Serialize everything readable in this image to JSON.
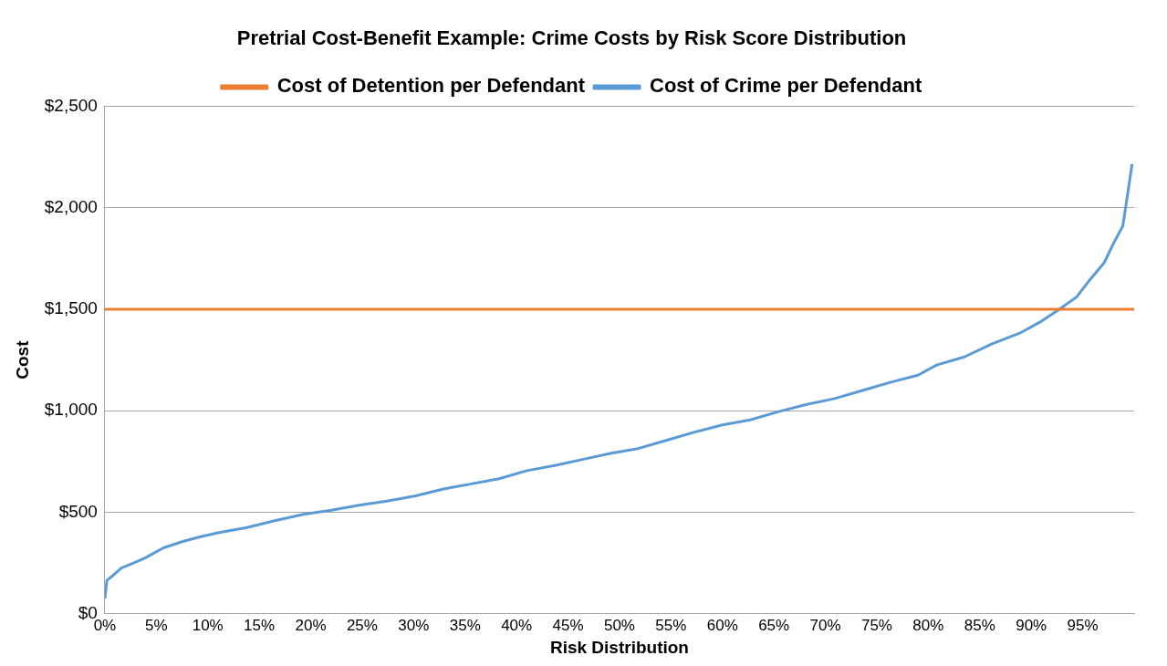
{
  "chart_data": {
    "type": "line",
    "title": "Pretrial Cost-Benefit Example: Crime Costs by Risk Score Distribution",
    "xlabel": "Risk Distribution",
    "ylabel": "Cost",
    "xlim": [
      0,
      100
    ],
    "xticks": [
      {
        "value": 0,
        "label": "0%"
      },
      {
        "value": 5,
        "label": "5%"
      },
      {
        "value": 10,
        "label": "10%"
      },
      {
        "value": 15,
        "label": "15%"
      },
      {
        "value": 20,
        "label": "20%"
      },
      {
        "value": 25,
        "label": "25%"
      },
      {
        "value": 30,
        "label": "30%"
      },
      {
        "value": 35,
        "label": "35%"
      },
      {
        "value": 40,
        "label": "40%"
      },
      {
        "value": 45,
        "label": "45%"
      },
      {
        "value": 50,
        "label": "50%"
      },
      {
        "value": 55,
        "label": "55%"
      },
      {
        "value": 60,
        "label": "60%"
      },
      {
        "value": 65,
        "label": "65%"
      },
      {
        "value": 70,
        "label": "70%"
      },
      {
        "value": 75,
        "label": "75%"
      },
      {
        "value": 80,
        "label": "80%"
      },
      {
        "value": 85,
        "label": "85%"
      },
      {
        "value": 90,
        "label": "90%"
      },
      {
        "value": 95,
        "label": "95%"
      }
    ],
    "ylim": [
      0,
      2500
    ],
    "yticks": [
      {
        "value": 0,
        "label": "$0"
      },
      {
        "value": 500,
        "label": "$500"
      },
      {
        "value": 1000,
        "label": "$1,000"
      },
      {
        "value": 1500,
        "label": "$1,500"
      },
      {
        "value": 2000,
        "label": "$2,000"
      },
      {
        "value": 2500,
        "label": "$2,500"
      }
    ],
    "grid": "y",
    "legend": "top",
    "marker": "none",
    "line_style": "solid",
    "series": [
      {
        "name": "Cost of Detention per Defendant",
        "color": "#ed7d31",
        "x": [
          0,
          100
        ],
        "values": [
          1500,
          1500
        ]
      },
      {
        "name": "Cost of Crime per Defendant",
        "color": "#5b9bd5",
        "x": [
          0,
          0.2,
          0.7,
          1.6,
          3.0,
          3.9,
          5.7,
          7.5,
          9.3,
          11.1,
          13.8,
          16.6,
          19.3,
          22.0,
          24.7,
          27.4,
          30.1,
          32.9,
          35.6,
          38.3,
          41.0,
          43.7,
          46.4,
          49.1,
          51.9,
          54.6,
          57.3,
          60.0,
          62.7,
          65.4,
          68.1,
          70.9,
          73.6,
          76.3,
          79.0,
          80.8,
          83.5,
          86.2,
          89.0,
          90.8,
          92.6,
          94.4,
          95.7,
          97.1,
          98.0,
          98.9,
          99.3,
          99.8
        ],
        "values": [
          75,
          165,
          185,
          225,
          255,
          275,
          325,
          355,
          380,
          400,
          425,
          460,
          490,
          510,
          535,
          555,
          580,
          615,
          640,
          665,
          705,
          730,
          760,
          790,
          815,
          855,
          895,
          930,
          955,
          995,
          1030,
          1060,
          1100,
          1140,
          1175,
          1225,
          1265,
          1330,
          1385,
          1435,
          1495,
          1560,
          1645,
          1730,
          1825,
          1910,
          2045,
          2215
        ]
      }
    ]
  }
}
